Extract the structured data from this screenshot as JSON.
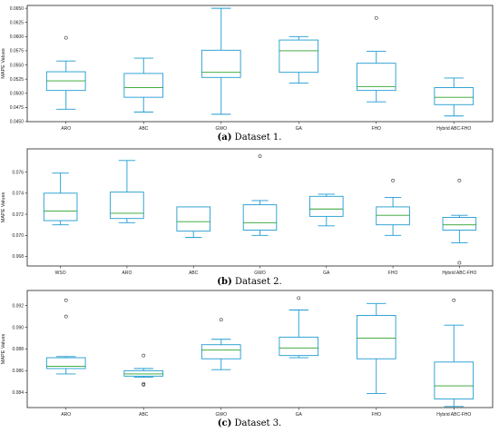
{
  "chart_data": [
    {
      "type": "box",
      "caption_letter": "(a)",
      "caption_text": " Dataset 1.",
      "ylabel": "MAPE Values",
      "ylim": [
        0.045,
        0.0655
      ],
      "yticks": [
        "0.0450",
        "0.0475",
        "0.0500",
        "0.0525",
        "0.0550",
        "0.0575",
        "0.0600",
        "0.0625",
        "0.0650"
      ],
      "ytick_values": [
        0.045,
        0.0475,
        0.05,
        0.0525,
        0.055,
        0.0575,
        0.06,
        0.0625,
        0.065
      ],
      "categories": [
        "ARO",
        "ABC",
        "GWO",
        "GA",
        "FHO",
        "Hybrid ABC-FHO"
      ],
      "boxes": [
        {
          "min": 0.0472,
          "q1": 0.0505,
          "median": 0.0522,
          "q3": 0.0538,
          "max": 0.0557,
          "outliers": [
            0.0598
          ]
        },
        {
          "min": 0.0467,
          "q1": 0.0493,
          "median": 0.051,
          "q3": 0.0535,
          "max": 0.0562,
          "outliers": []
        },
        {
          "min": 0.0463,
          "q1": 0.0528,
          "median": 0.0537,
          "q3": 0.0576,
          "max": 0.065,
          "outliers": []
        },
        {
          "min": 0.0518,
          "q1": 0.0537,
          "median": 0.0575,
          "q3": 0.0594,
          "max": 0.06,
          "outliers": []
        },
        {
          "min": 0.0485,
          "q1": 0.0505,
          "median": 0.0512,
          "q3": 0.0553,
          "max": 0.0574,
          "outliers": [
            0.0633
          ]
        },
        {
          "min": 0.046,
          "q1": 0.048,
          "median": 0.0493,
          "q3": 0.051,
          "max": 0.0527,
          "outliers": []
        }
      ]
    },
    {
      "type": "box",
      "caption_letter": "(b)",
      "caption_text": " Dataset 2.",
      "ylabel": "MAPE Values",
      "ylim": [
        0.0671,
        0.0782
      ],
      "yticks": [
        "0.068",
        "0.070",
        "0.072",
        "0.074",
        "0.076"
      ],
      "ytick_values": [
        0.068,
        0.07,
        0.072,
        0.074,
        0.076
      ],
      "categories": [
        "WSO",
        "ARO",
        "ABC",
        "GWO",
        "GA",
        "FHO",
        "Hybrid ABC-FHO"
      ],
      "boxes": [
        {
          "min": 0.071,
          "q1": 0.0714,
          "median": 0.0723,
          "q3": 0.074,
          "max": 0.0759,
          "outliers": []
        },
        {
          "min": 0.0712,
          "q1": 0.0716,
          "median": 0.0721,
          "q3": 0.0741,
          "max": 0.0771,
          "outliers": []
        },
        {
          "min": 0.0698,
          "q1": 0.0704,
          "median": 0.0713,
          "q3": 0.0727,
          "max": 0.0727,
          "outliers": []
        },
        {
          "min": 0.07,
          "q1": 0.0705,
          "median": 0.0712,
          "q3": 0.0729,
          "max": 0.0733,
          "outliers": [
            0.0775
          ]
        },
        {
          "min": 0.0709,
          "q1": 0.0718,
          "median": 0.0725,
          "q3": 0.0737,
          "max": 0.0739,
          "outliers": []
        },
        {
          "min": 0.07,
          "q1": 0.071,
          "median": 0.0719,
          "q3": 0.0727,
          "max": 0.0736,
          "outliers": [
            0.0752
          ]
        },
        {
          "min": 0.0693,
          "q1": 0.0705,
          "median": 0.071,
          "q3": 0.0717,
          "max": 0.0719,
          "outliers": [
            0.0752,
            0.0674
          ]
        }
      ]
    },
    {
      "type": "box",
      "caption_letter": "(c)",
      "caption_text": " Dataset 3.",
      "ylabel": "MAPE Values",
      "ylim": [
        0.0826,
        0.0934
      ],
      "yticks": [
        "0.084",
        "0.086",
        "0.088",
        "0.090",
        "0.092"
      ],
      "ytick_values": [
        0.084,
        0.086,
        0.088,
        0.09,
        0.092
      ],
      "categories": [
        "ARO",
        "ABC",
        "GWO",
        "GA",
        "FHO",
        "Hybrid ABC-FHO"
      ],
      "boxes": [
        {
          "min": 0.0857,
          "q1": 0.0862,
          "median": 0.0864,
          "q3": 0.0872,
          "max": 0.0873,
          "outliers": [
            0.0925,
            0.091
          ]
        },
        {
          "min": 0.0854,
          "q1": 0.0855,
          "median": 0.0857,
          "q3": 0.086,
          "max": 0.0862,
          "outliers": [
            0.0874,
            0.0848,
            0.0847
          ]
        },
        {
          "min": 0.0861,
          "q1": 0.0871,
          "median": 0.0879,
          "q3": 0.0884,
          "max": 0.0889,
          "outliers": [
            0.0907
          ]
        },
        {
          "min": 0.0872,
          "q1": 0.0874,
          "median": 0.0881,
          "q3": 0.0891,
          "max": 0.0916,
          "outliers": [
            0.0927
          ]
        },
        {
          "min": 0.0839,
          "q1": 0.0871,
          "median": 0.089,
          "q3": 0.0911,
          "max": 0.0922,
          "outliers": []
        },
        {
          "min": 0.0827,
          "q1": 0.0834,
          "median": 0.0846,
          "q3": 0.0868,
          "max": 0.0902,
          "outliers": [
            0.0925
          ]
        }
      ]
    }
  ],
  "colors": {
    "box": "#1f9bd1",
    "median": "#2ca02c",
    "axis": "#222222"
  }
}
